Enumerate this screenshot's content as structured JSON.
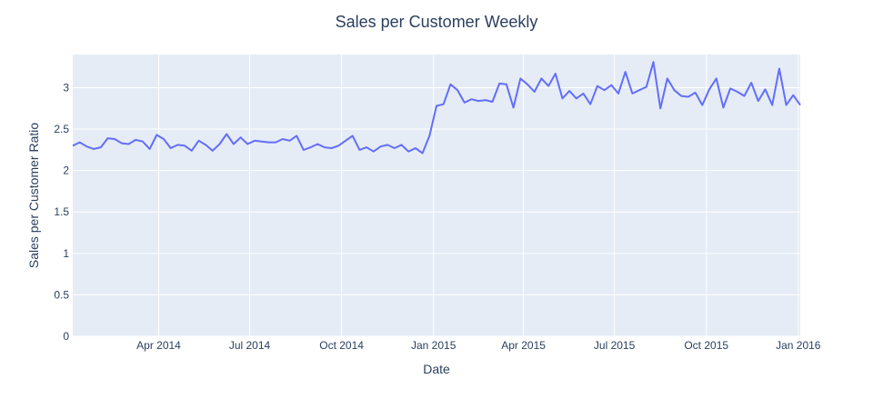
{
  "chart_data": {
    "type": "line",
    "title": "Sales per Customer Weekly",
    "xlabel": "Date",
    "ylabel": "Sales per Customer Ratio",
    "ylim": [
      0,
      3.4
    ],
    "grid": true,
    "colors": {
      "plot_bg": "#e5ecf6",
      "grid": "#ffffff",
      "line": "#636efa",
      "text": "#2a3f5f"
    },
    "x_ticks": [
      {
        "date": "2014-04-01",
        "label": "Apr 2014"
      },
      {
        "date": "2014-07-01",
        "label": "Jul 2014"
      },
      {
        "date": "2014-10-01",
        "label": "Oct 2014"
      },
      {
        "date": "2015-01-01",
        "label": "Jan 2015"
      },
      {
        "date": "2015-04-01",
        "label": "Apr 2015"
      },
      {
        "date": "2015-07-01",
        "label": "Jul 2015"
      },
      {
        "date": "2015-10-01",
        "label": "Oct 2015"
      },
      {
        "date": "2016-01-01",
        "label": "Jan 2016"
      }
    ],
    "y_ticks": [
      {
        "value": 0,
        "label": "0"
      },
      {
        "value": 0.5,
        "label": "0.5"
      },
      {
        "value": 1,
        "label": "1"
      },
      {
        "value": 1.5,
        "label": "1.5"
      },
      {
        "value": 2,
        "label": "2"
      },
      {
        "value": 2.5,
        "label": "2.5"
      },
      {
        "value": 3,
        "label": "3"
      }
    ],
    "x_range": [
      "2014-01-05",
      "2016-01-03"
    ],
    "series": [
      {
        "x": [
          "2014-01-05",
          "2014-01-12",
          "2014-01-19",
          "2014-01-26",
          "2014-02-02",
          "2014-02-09",
          "2014-02-16",
          "2014-02-23",
          "2014-03-02",
          "2014-03-09",
          "2014-03-16",
          "2014-03-23",
          "2014-03-30",
          "2014-04-06",
          "2014-04-13",
          "2014-04-20",
          "2014-04-27",
          "2014-05-04",
          "2014-05-11",
          "2014-05-18",
          "2014-05-25",
          "2014-06-01",
          "2014-06-08",
          "2014-06-15",
          "2014-06-22",
          "2014-06-29",
          "2014-07-06",
          "2014-07-13",
          "2014-07-20",
          "2014-07-27",
          "2014-08-03",
          "2014-08-10",
          "2014-08-17",
          "2014-08-24",
          "2014-08-31",
          "2014-09-07",
          "2014-09-14",
          "2014-09-21",
          "2014-09-28",
          "2014-10-05",
          "2014-10-12",
          "2014-10-19",
          "2014-10-26",
          "2014-11-02",
          "2014-11-09",
          "2014-11-16",
          "2014-11-23",
          "2014-11-30",
          "2014-12-07",
          "2014-12-14",
          "2014-12-21",
          "2014-12-28",
          "2015-01-04",
          "2015-01-11",
          "2015-01-18",
          "2015-01-25",
          "2015-02-01",
          "2015-02-08",
          "2015-02-15",
          "2015-02-22",
          "2015-03-01",
          "2015-03-08",
          "2015-03-15",
          "2015-03-22",
          "2015-03-29",
          "2015-04-05",
          "2015-04-12",
          "2015-04-19",
          "2015-04-26",
          "2015-05-03",
          "2015-05-10",
          "2015-05-17",
          "2015-05-24",
          "2015-05-31",
          "2015-06-07",
          "2015-06-14",
          "2015-06-21",
          "2015-06-28",
          "2015-07-05",
          "2015-07-12",
          "2015-07-19",
          "2015-07-26",
          "2015-08-02",
          "2015-08-09",
          "2015-08-16",
          "2015-08-23",
          "2015-08-30",
          "2015-09-06",
          "2015-09-13",
          "2015-09-20",
          "2015-09-27",
          "2015-10-04",
          "2015-10-11",
          "2015-10-18",
          "2015-10-25",
          "2015-11-01",
          "2015-11-08",
          "2015-11-15",
          "2015-11-22",
          "2015-11-29",
          "2015-12-06",
          "2015-12-13",
          "2015-12-20",
          "2015-12-27",
          "2016-01-03"
        ],
        "y": [
          2.3,
          2.34,
          2.29,
          2.26,
          2.28,
          2.39,
          2.38,
          2.33,
          2.32,
          2.37,
          2.35,
          2.26,
          2.43,
          2.38,
          2.27,
          2.31,
          2.3,
          2.24,
          2.36,
          2.31,
          2.24,
          2.32,
          2.44,
          2.32,
          2.4,
          2.32,
          2.36,
          2.35,
          2.34,
          2.34,
          2.38,
          2.36,
          2.42,
          2.25,
          2.28,
          2.32,
          2.28,
          2.27,
          2.3,
          2.36,
          2.42,
          2.25,
          2.28,
          2.23,
          2.29,
          2.31,
          2.27,
          2.31,
          2.23,
          2.27,
          2.21,
          2.42,
          2.78,
          2.8,
          3.04,
          2.97,
          2.82,
          2.86,
          2.84,
          2.85,
          2.83,
          3.05,
          3.04,
          2.76,
          3.11,
          3.04,
          2.95,
          3.11,
          3.02,
          3.17,
          2.87,
          2.96,
          2.87,
          2.93,
          2.8,
          3.02,
          2.97,
          3.03,
          2.93,
          3.19,
          2.93,
          2.97,
          3.01,
          3.31,
          2.75,
          3.11,
          2.97,
          2.9,
          2.89,
          2.94,
          2.79,
          2.98,
          3.11,
          2.76,
          2.99,
          2.95,
          2.9,
          3.06,
          2.84,
          2.98,
          2.79,
          3.23,
          2.79,
          2.91,
          2.79
        ]
      }
    ]
  }
}
